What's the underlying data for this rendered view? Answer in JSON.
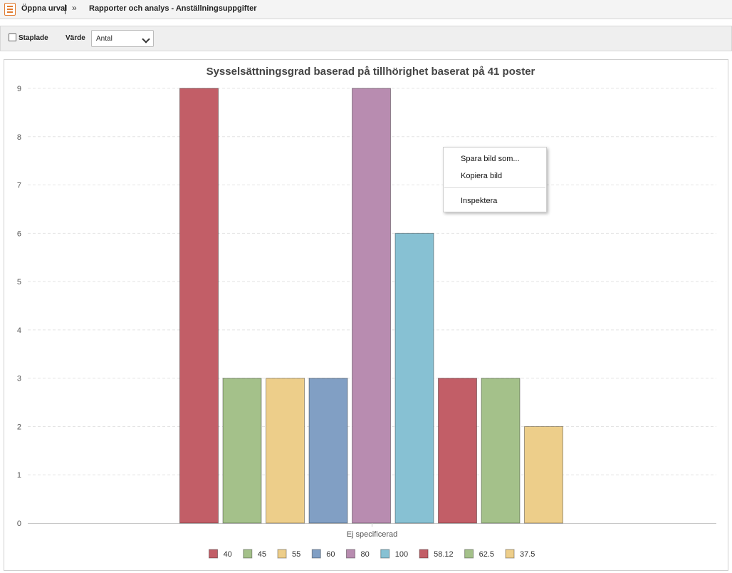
{
  "breadcrumb": {
    "open_selection": "Öppna urval",
    "path": "Rapporter och analys - Anställningsuppgifter"
  },
  "toolbar": {
    "stacked_label": "Staplade",
    "stacked_checked": false,
    "value_label": "Värde",
    "value_selected": "Antal"
  },
  "context_menu": {
    "items": [
      "Spara bild som...",
      "Kopiera bild",
      "Inspektera"
    ]
  },
  "chart_data": {
    "type": "bar",
    "title": "Sysselsättningsgrad baserad på tillhörighet baserat på 41 poster",
    "categories": [
      "Ej specificerad"
    ],
    "ylim": [
      0,
      9
    ],
    "yticks": [
      0,
      1,
      2,
      3,
      4,
      5,
      6,
      7,
      8,
      9
    ],
    "grid": true,
    "legend_position": "bottom-center",
    "series": [
      {
        "name": "40",
        "values": [
          9
        ],
        "color": "#c25e67"
      },
      {
        "name": "45",
        "values": [
          3
        ],
        "color": "#a4c18a"
      },
      {
        "name": "55",
        "values": [
          3
        ],
        "color": "#edce8a"
      },
      {
        "name": "60",
        "values": [
          3
        ],
        "color": "#819fc4"
      },
      {
        "name": "80",
        "values": [
          9
        ],
        "color": "#b88cb0"
      },
      {
        "name": "100",
        "values": [
          6
        ],
        "color": "#87c1d3"
      },
      {
        "name": "58.12",
        "values": [
          3
        ],
        "color": "#c25e67"
      },
      {
        "name": "62.5",
        "values": [
          3
        ],
        "color": "#a4c18a"
      },
      {
        "name": "37.5",
        "values": [
          2
        ],
        "color": "#edce8a"
      }
    ]
  }
}
